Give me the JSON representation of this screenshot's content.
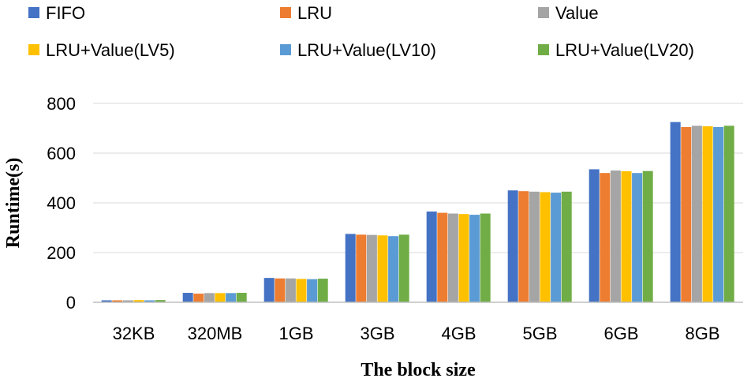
{
  "chart_data": {
    "type": "bar",
    "title": "",
    "xlabel": "The block size",
    "ylabel": "Runtime(s)",
    "ylim": [
      0,
      800
    ],
    "yticks": [
      0,
      200,
      400,
      600,
      800
    ],
    "grid": true,
    "legend_position": "top",
    "categories": [
      "32KB",
      "320MB",
      "1GB",
      "3GB",
      "4GB",
      "5GB",
      "6GB",
      "8GB"
    ],
    "series": [
      {
        "name": "FIFO",
        "color": "#4472C4",
        "values": [
          8,
          38,
          98,
          275,
          365,
          450,
          535,
          725
        ]
      },
      {
        "name": "LRU",
        "color": "#ED7D31",
        "values": [
          8,
          35,
          96,
          272,
          360,
          447,
          520,
          705
        ]
      },
      {
        "name": "Value",
        "color": "#A5A5A5",
        "values": [
          8,
          37,
          96,
          271,
          357,
          445,
          530,
          710
        ]
      },
      {
        "name": "LRU+Value(LV5)",
        "color": "#FFC000",
        "values": [
          9,
          37,
          94,
          269,
          355,
          443,
          527,
          708
        ]
      },
      {
        "name": "LRU+Value(LV10)",
        "color": "#5B9BD5",
        "values": [
          8,
          37,
          93,
          266,
          352,
          441,
          520,
          705
        ]
      },
      {
        "name": "LRU+Value(LV20)",
        "color": "#70AD47",
        "values": [
          9,
          38,
          95,
          272,
          357,
          445,
          528,
          710
        ]
      }
    ]
  }
}
